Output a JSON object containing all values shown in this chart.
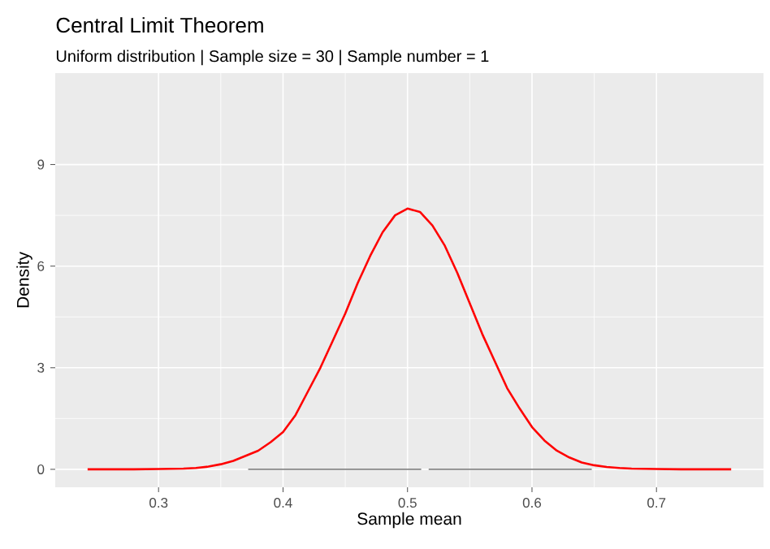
{
  "chart_data": {
    "type": "line",
    "title": "Central Limit Theorem",
    "subtitle": "Uniform distribution | Sample size = 30 | Sample number = 1",
    "xlabel": "Sample mean",
    "ylabel": "Density",
    "xlim": [
      0.217,
      0.786
    ],
    "ylim": [
      -0.53,
      11.7
    ],
    "xticks": [
      0.3,
      0.4,
      0.5,
      0.6,
      0.7
    ],
    "yticks": [
      0,
      3,
      6,
      9
    ],
    "grid": true,
    "marker": "none",
    "line_style": "solid",
    "series": [
      {
        "color": "#595959",
        "x": [
          0.372,
          0.511,
          0.514,
          0.517,
          0.648
        ],
        "values": [
          0,
          0,
          null,
          0,
          0
        ]
      },
      {
        "color": "#ff0000",
        "x": [
          0.243,
          0.28,
          0.3,
          0.32,
          0.33,
          0.34,
          0.35,
          0.36,
          0.37,
          0.38,
          0.39,
          0.4,
          0.41,
          0.42,
          0.43,
          0.44,
          0.45,
          0.46,
          0.47,
          0.48,
          0.49,
          0.5,
          0.51,
          0.52,
          0.53,
          0.54,
          0.55,
          0.56,
          0.57,
          0.58,
          0.59,
          0.6,
          0.61,
          0.62,
          0.63,
          0.64,
          0.65,
          0.66,
          0.67,
          0.68,
          0.7,
          0.72,
          0.76
        ],
        "values": [
          0,
          0,
          0.01,
          0.02,
          0.04,
          0.08,
          0.15,
          0.25,
          0.4,
          0.55,
          0.8,
          1.1,
          1.6,
          2.3,
          3.0,
          3.8,
          4.6,
          5.5,
          6.3,
          7.0,
          7.5,
          7.7,
          7.6,
          7.2,
          6.6,
          5.8,
          4.9,
          4.0,
          3.2,
          2.4,
          1.8,
          1.25,
          0.85,
          0.55,
          0.35,
          0.2,
          0.12,
          0.07,
          0.04,
          0.02,
          0.01,
          0,
          0
        ]
      }
    ]
  }
}
